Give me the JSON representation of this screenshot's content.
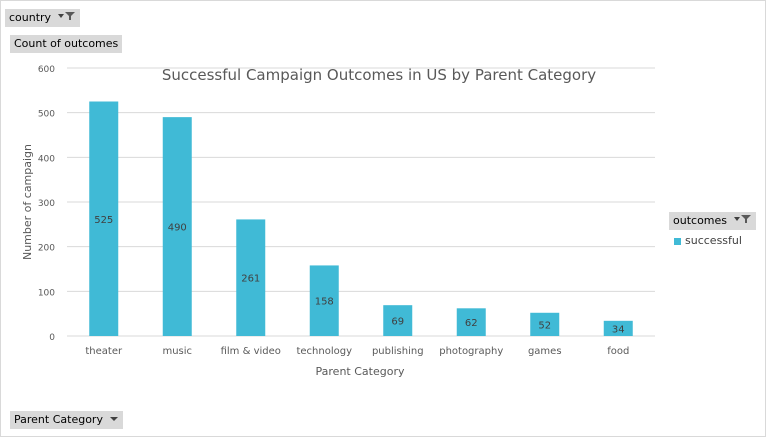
{
  "filters": {
    "country_label": "country",
    "count_label": "Count of outcomes",
    "outcomes_label": "outcomes",
    "parent_category_label": "Parent Category"
  },
  "icons": {
    "country_filter": "filter-funnel-icon",
    "outcomes_filter": "filter-funnel-icon",
    "parent_category_dropdown": "chevron-down-icon"
  },
  "colors": {
    "bar": "#40bad6",
    "title": "#595959",
    "axis_text": "#595959",
    "grid": "#d9d9d9"
  },
  "chart_data": {
    "type": "bar",
    "title": "Successful Campaign Outcomes in US by Parent Category",
    "xlabel": "Parent  Category",
    "ylabel": "Number of campaign",
    "categories": [
      "theater",
      "music",
      "film & video",
      "technology",
      "publishing",
      "photography",
      "games",
      "food"
    ],
    "series": [
      {
        "name": "successful",
        "values": [
          525,
          490,
          261,
          158,
          69,
          62,
          52,
          34
        ]
      }
    ],
    "ylim": [
      0,
      600
    ],
    "yticks": [
      0,
      100,
      200,
      300,
      400,
      500,
      600
    ],
    "grid": true,
    "legend_position": "right",
    "data_labels": true
  }
}
